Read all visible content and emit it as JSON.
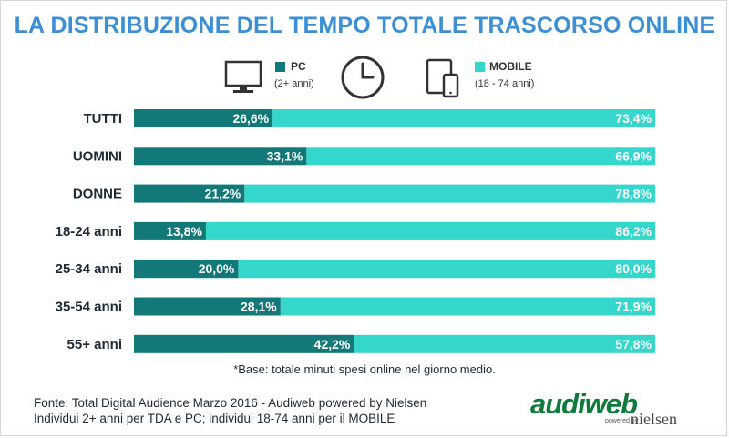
{
  "title": "LA DISTRIBUZIONE DEL TEMPO TOTALE TRASCORSO ONLINE",
  "legend": {
    "pc": {
      "name": "PC",
      "sub": "(2+ anni)"
    },
    "mobile": {
      "name": "MOBILE",
      "sub": "(18 - 74 anni)"
    }
  },
  "icons": [
    "monitor-icon",
    "clock-icon",
    "tablet-phone-icon"
  ],
  "colors": {
    "title": "#3d8fd4",
    "pc": "#127878",
    "mobile": "#35d6cc",
    "logo_main": "#0f7a3c",
    "logo_accent": "#1e4fa0"
  },
  "chart_data": {
    "type": "bar",
    "orientation": "horizontal-stacked-100",
    "categories": [
      "TUTTI",
      "UOMINI",
      "DONNE",
      "18-24 anni",
      "25-34 anni",
      "35-54 anni",
      "55+ anni"
    ],
    "series": [
      {
        "name": "PC",
        "values": [
          26.6,
          33.1,
          21.2,
          13.8,
          20.0,
          28.1,
          42.2
        ]
      },
      {
        "name": "MOBILE",
        "values": [
          73.4,
          66.9,
          78.8,
          86.2,
          80.0,
          71.9,
          57.8
        ]
      }
    ],
    "value_labels": {
      "PC": [
        "26,6%",
        "33,1%",
        "21,2%",
        "13,8%",
        "20,0%",
        "28,1%",
        "42,2%"
      ],
      "MOBILE": [
        "73,4%",
        "66,9%",
        "78,8%",
        "86,2%",
        "80,0%",
        "71,9%",
        "57,8%"
      ]
    },
    "xlim": [
      0,
      100
    ],
    "grid": false
  },
  "note": "*Base: totale minuti spesi online nel giorno medio.",
  "source": {
    "line1": "Fonte: Total Digital Audience Marzo 2016 - Audiweb powered by Nielsen",
    "line2": "Individui 2+ anni per TDA e PC; individui 18-74 anni per il MOBILE"
  },
  "logo": {
    "main": "audiweb",
    "powered": "powered by",
    "partner": "nielsen"
  }
}
